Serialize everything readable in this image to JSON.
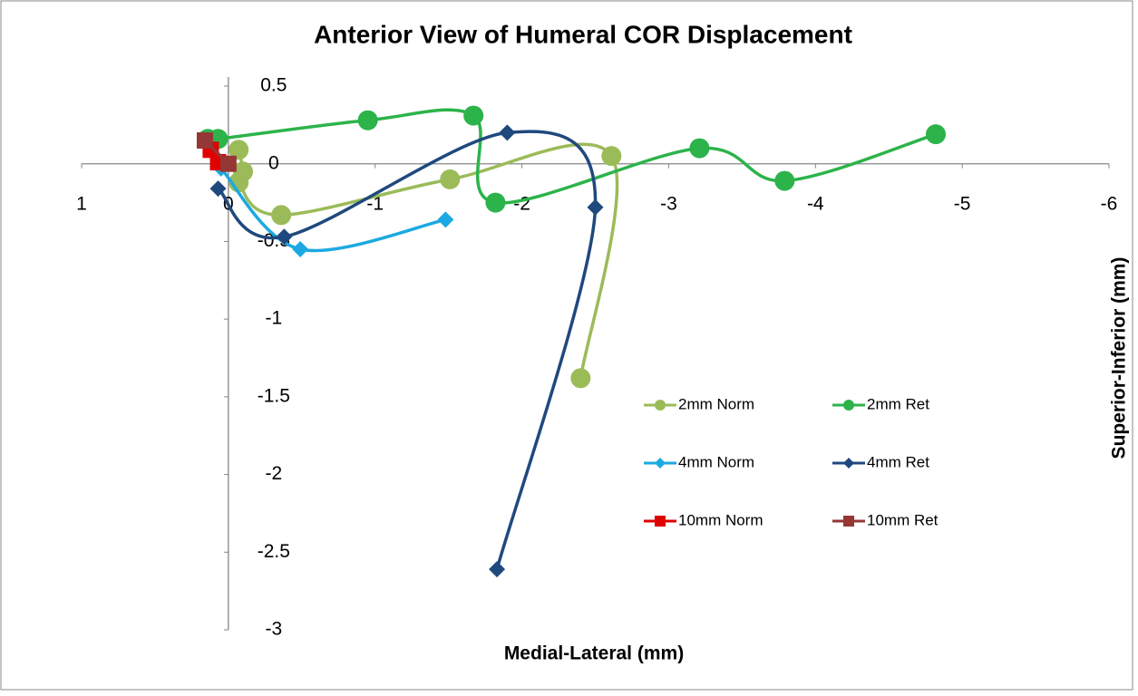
{
  "chart_data": {
    "type": "scatter",
    "title": "Anterior View of Humeral COR Displacement",
    "x_label": "Medial-Lateral (mm)",
    "y_label": "Superior-Inferior (mm)",
    "xlim": [
      1,
      -6
    ],
    "xticks": [
      1,
      0,
      -1,
      -2,
      -3,
      -4,
      -5,
      -6
    ],
    "ylim": [
      -3,
      0.5
    ],
    "yticks": [
      0.5,
      0,
      -0.5,
      -1,
      -1.5,
      -2,
      -2.5,
      -3
    ],
    "smooth": true,
    "legend": "lower right",
    "series": [
      {
        "name": "2mm Norm",
        "color": "#9bbb59",
        "marker": "circle",
        "x": [
          -0.07,
          -0.1,
          -0.07,
          -0.36,
          -1.51,
          -2.61,
          -2.4
        ],
        "values": [
          0.09,
          -0.05,
          -0.12,
          -0.33,
          -0.1,
          0.05,
          -1.38
        ]
      },
      {
        "name": "2mm Ret",
        "color": "#2cb34a",
        "marker": "circle",
        "x": [
          0.14,
          0.07,
          -0.95,
          -1.67,
          -1.82,
          -3.21,
          -3.79,
          -4.82
        ],
        "values": [
          0.16,
          0.16,
          0.28,
          0.31,
          -0.25,
          0.1,
          -0.11,
          0.19
        ]
      },
      {
        "name": "4mm Norm",
        "color": "#1ca9e1",
        "marker": "diamond",
        "x": [
          0.05,
          -0.49,
          -1.48
        ],
        "values": [
          -0.03,
          -0.55,
          -0.36
        ]
      },
      {
        "name": "4mm Ret",
        "color": "#1f497d",
        "marker": "diamond",
        "x": [
          0.07,
          -0.38,
          -1.9,
          -2.5,
          -1.83
        ],
        "values": [
          -0.16,
          -0.47,
          0.2,
          -0.28,
          -2.61
        ]
      },
      {
        "name": "10mm Norm",
        "color": "#e00000",
        "marker": "square",
        "x": [
          0.12,
          0.07
        ],
        "values": [
          0.09,
          0.01
        ]
      },
      {
        "name": "10mm Ret",
        "color": "#953735",
        "marker": "square",
        "x": [
          0.16,
          0
        ],
        "values": [
          0.15,
          0
        ]
      }
    ]
  }
}
